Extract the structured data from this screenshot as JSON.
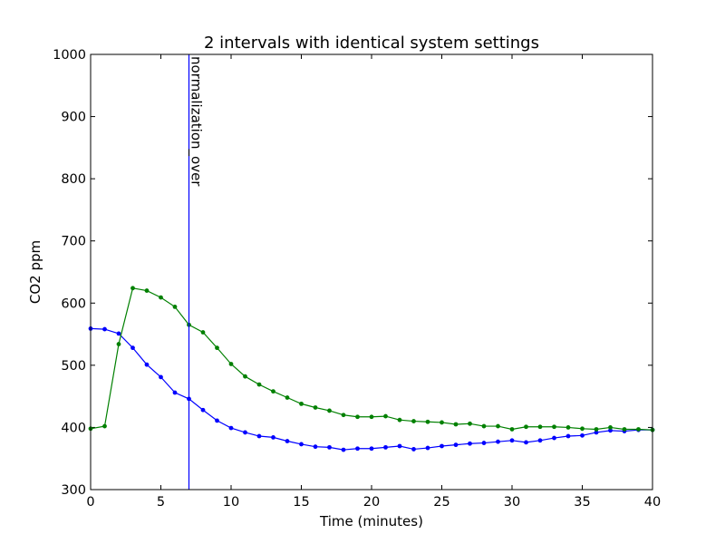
{
  "chart_data": {
    "type": "line",
    "title": "2 intervals with identical system settings",
    "xlabel": "Time (minutes)",
    "ylabel": "CO2 ppm",
    "xlim": [
      0,
      40
    ],
    "ylim": [
      300,
      1000
    ],
    "xticks": [
      "0",
      "5",
      "10",
      "15",
      "20",
      "25",
      "30",
      "35",
      "40"
    ],
    "yticks": [
      "300",
      "400",
      "500",
      "600",
      "700",
      "800",
      "900",
      "1000"
    ],
    "grid": false,
    "legend": "none",
    "annotation": {
      "x": 7,
      "text": "normalization_over",
      "color": "#0000ff"
    },
    "x": [
      0,
      1,
      2,
      3,
      4,
      5,
      6,
      7,
      8,
      9,
      10,
      11,
      12,
      13,
      14,
      15,
      16,
      17,
      18,
      19,
      20,
      21,
      22,
      23,
      24,
      25,
      26,
      27,
      28,
      29,
      30,
      31,
      32,
      33,
      34,
      35,
      36,
      37,
      38,
      39,
      40
    ],
    "series": [
      {
        "color": "#0000ff",
        "values": [
          559,
          558,
          551,
          528,
          501,
          481,
          456,
          446,
          428,
          411,
          399,
          392,
          386,
          384,
          378,
          373,
          369,
          368,
          364,
          366,
          366,
          368,
          370,
          365,
          367,
          370,
          372,
          374,
          375,
          377,
          379,
          376,
          379,
          383,
          386,
          387,
          392,
          395,
          394,
          396,
          396
        ]
      },
      {
        "color": "#008000",
        "values": [
          398,
          402,
          534,
          624,
          620,
          609,
          594,
          565,
          553,
          528,
          502,
          482,
          469,
          458,
          448,
          438,
          432,
          427,
          420,
          417,
          417,
          418,
          412,
          410,
          409,
          408,
          405,
          406,
          402,
          402,
          397,
          401,
          401,
          401,
          400,
          398,
          397,
          400,
          397,
          397,
          396
        ]
      }
    ]
  }
}
